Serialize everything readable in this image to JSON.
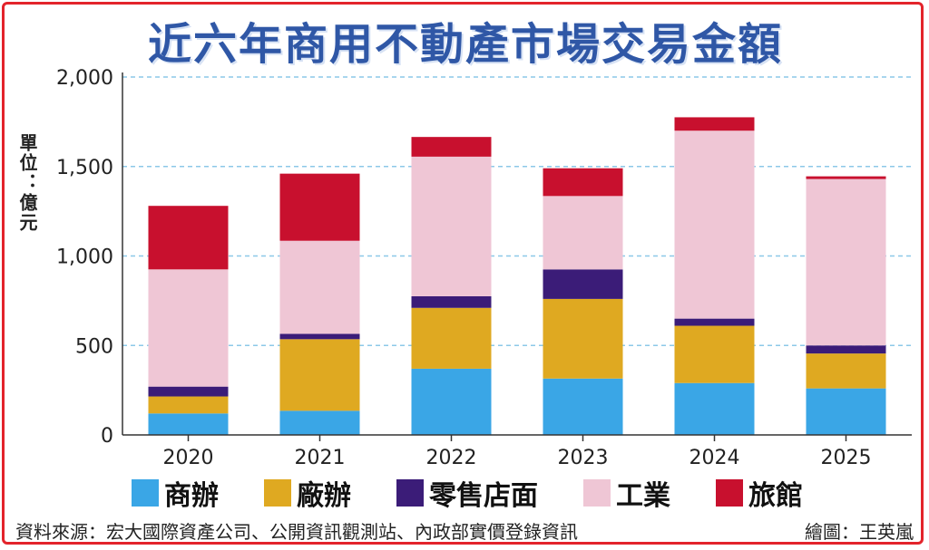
{
  "chart_data": {
    "type": "bar",
    "stacked": true,
    "title": "近六年商用不動產市場交易金額",
    "ylabel": "單位：億元",
    "ylim": [
      0,
      2000
    ],
    "yticks": [
      0,
      500,
      1000,
      1500,
      2000
    ],
    "ytick_labels": [
      "0",
      "500",
      "1,000",
      "1,500",
      "2,000"
    ],
    "grid": "horizontal-dashed",
    "legend_position": "bottom",
    "categories": [
      "2020",
      "2021",
      "2022",
      "2023",
      "2024",
      "2025"
    ],
    "series": [
      {
        "name": "商辦",
        "color": "#3aa6e6",
        "values": [
          120,
          135,
          370,
          315,
          290,
          260
        ]
      },
      {
        "name": "廠辦",
        "color": "#dfa921",
        "values": [
          95,
          400,
          340,
          445,
          320,
          195
        ]
      },
      {
        "name": "零售店面",
        "color": "#3b1c78",
        "values": [
          55,
          30,
          65,
          165,
          40,
          45
        ]
      },
      {
        "name": "工業",
        "color": "#efc6d5",
        "values": [
          655,
          520,
          780,
          410,
          1050,
          930
        ]
      },
      {
        "name": "旅館",
        "color": "#c8102e",
        "values": [
          355,
          375,
          110,
          155,
          75,
          15
        ]
      }
    ]
  },
  "source_text": "資料來源：宏大國際資產公司、公開資訊觀測站、內政部實價登錄資訊",
  "credit_text": "繪圖：王英嵐"
}
